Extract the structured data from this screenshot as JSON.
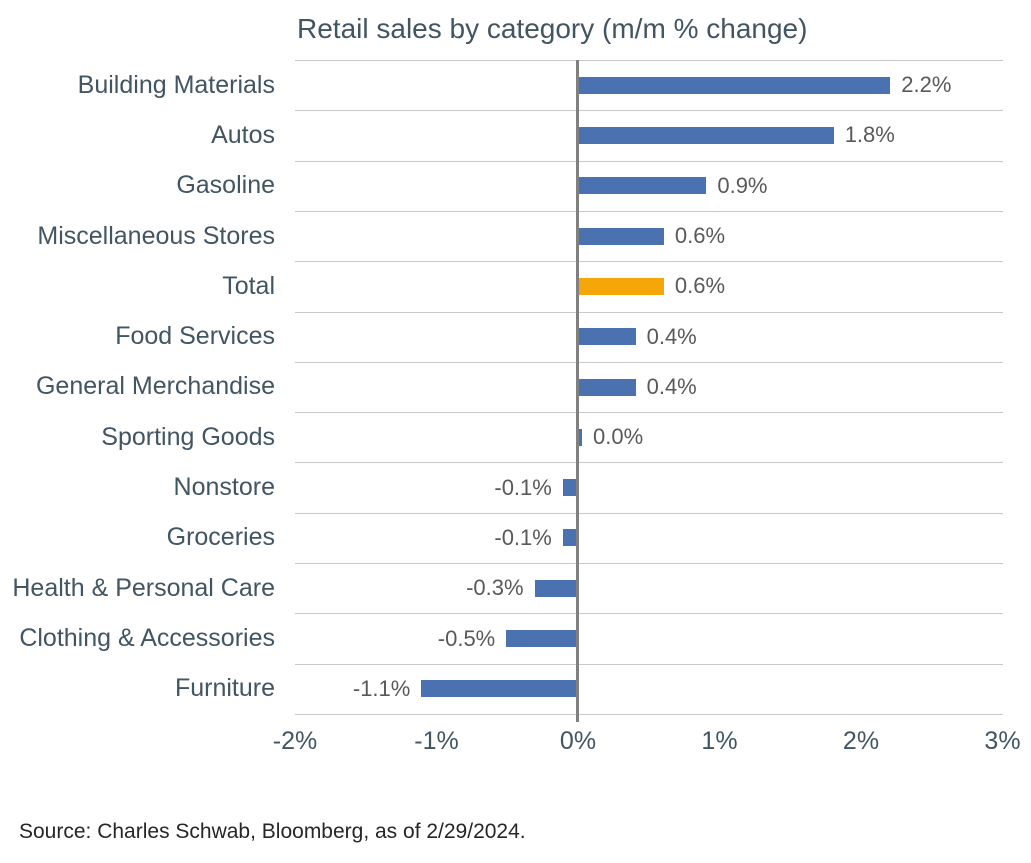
{
  "chart_data": {
    "type": "bar",
    "orientation": "horizontal",
    "title": "Retail sales by category (m/m % change)",
    "categories": [
      "Building Materials",
      "Autos",
      "Gasoline",
      "Miscellaneous Stores",
      "Total",
      "Food Services",
      "General Merchandise",
      "Sporting Goods",
      "Nonstore",
      "Groceries",
      "Health & Personal Care",
      "Clothing & Accessories",
      "Furniture"
    ],
    "values": [
      2.2,
      1.8,
      0.9,
      0.6,
      0.6,
      0.4,
      0.4,
      0.0,
      -0.1,
      -0.1,
      -0.3,
      -0.5,
      -1.1
    ],
    "value_labels": [
      "2.2%",
      "1.8%",
      "0.9%",
      "0.6%",
      "0.6%",
      "0.4%",
      "0.4%",
      "0.0%",
      "-0.1%",
      "-0.1%",
      "-0.3%",
      "-0.5%",
      "-1.1%"
    ],
    "highlight_index": 4,
    "highlight_category": "Total",
    "x_ticks": [
      "-2%",
      "-1%",
      "0%",
      "1%",
      "2%",
      "3%"
    ],
    "x_tick_values": [
      -2,
      -1,
      0,
      1,
      2,
      3
    ],
    "xlim": [
      -2,
      3
    ],
    "grid": "horizontal-only",
    "legend": "none",
    "colors": {
      "bar": "#4a72b0",
      "highlight": "#f5a70a",
      "gridline": "#c9c9c9",
      "zero_line": "#808080",
      "title_text": "#425563",
      "category_text": "#425563",
      "tick_text": "#425563",
      "value_text": "#595959",
      "source_text": "#262626",
      "background": "#ffffff"
    }
  },
  "source": "Source: Charles Schwab, Bloomberg, as of 2/29/2024."
}
